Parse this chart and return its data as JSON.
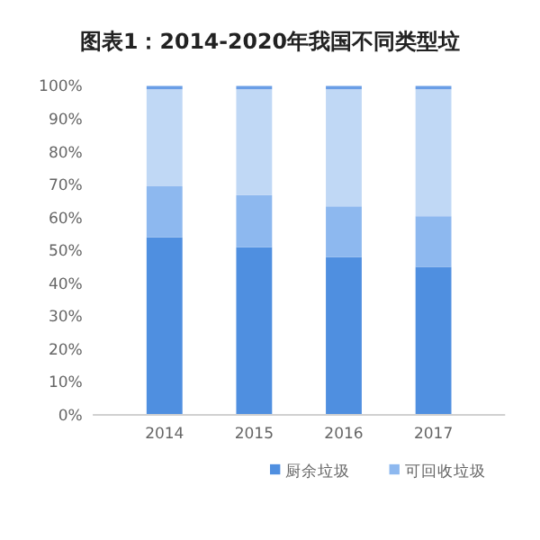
{
  "chart_data": {
    "type": "bar",
    "title": "图表1：2014-2020年我国不同类型垃",
    "categories": [
      "2014",
      "2015",
      "2016",
      "2017"
    ],
    "stacked": true,
    "series": [
      {
        "name": "厨余垃圾",
        "color": "#4f8fe0",
        "values": [
          54,
          51,
          48,
          45
        ]
      },
      {
        "name": "可回收垃圾",
        "color": "#8db8ef",
        "values": [
          15.5,
          15.8,
          15.4,
          15.4
        ]
      },
      {
        "color": "#c0d8f5",
        "values": [
          29.5,
          32.2,
          35.6,
          38.6
        ]
      },
      {
        "color": "#6a9ee6",
        "values": [
          1,
          1,
          1,
          1
        ]
      }
    ],
    "ylim": [
      0,
      100
    ],
    "yticks": [
      {
        "value": 0,
        "label": "0%"
      },
      {
        "value": 10,
        "label": "10%"
      },
      {
        "value": 20,
        "label": "20%"
      },
      {
        "value": 30,
        "label": "30%"
      },
      {
        "value": 40,
        "label": "40%"
      },
      {
        "value": 50,
        "label": "50%"
      },
      {
        "value": 60,
        "label": "60%"
      },
      {
        "value": 70,
        "label": "70%"
      },
      {
        "value": 80,
        "label": "80%"
      },
      {
        "value": 90,
        "label": "90%"
      },
      {
        "value": 100,
        "label": "100%"
      }
    ],
    "grid": false,
    "legend": "bottom"
  }
}
